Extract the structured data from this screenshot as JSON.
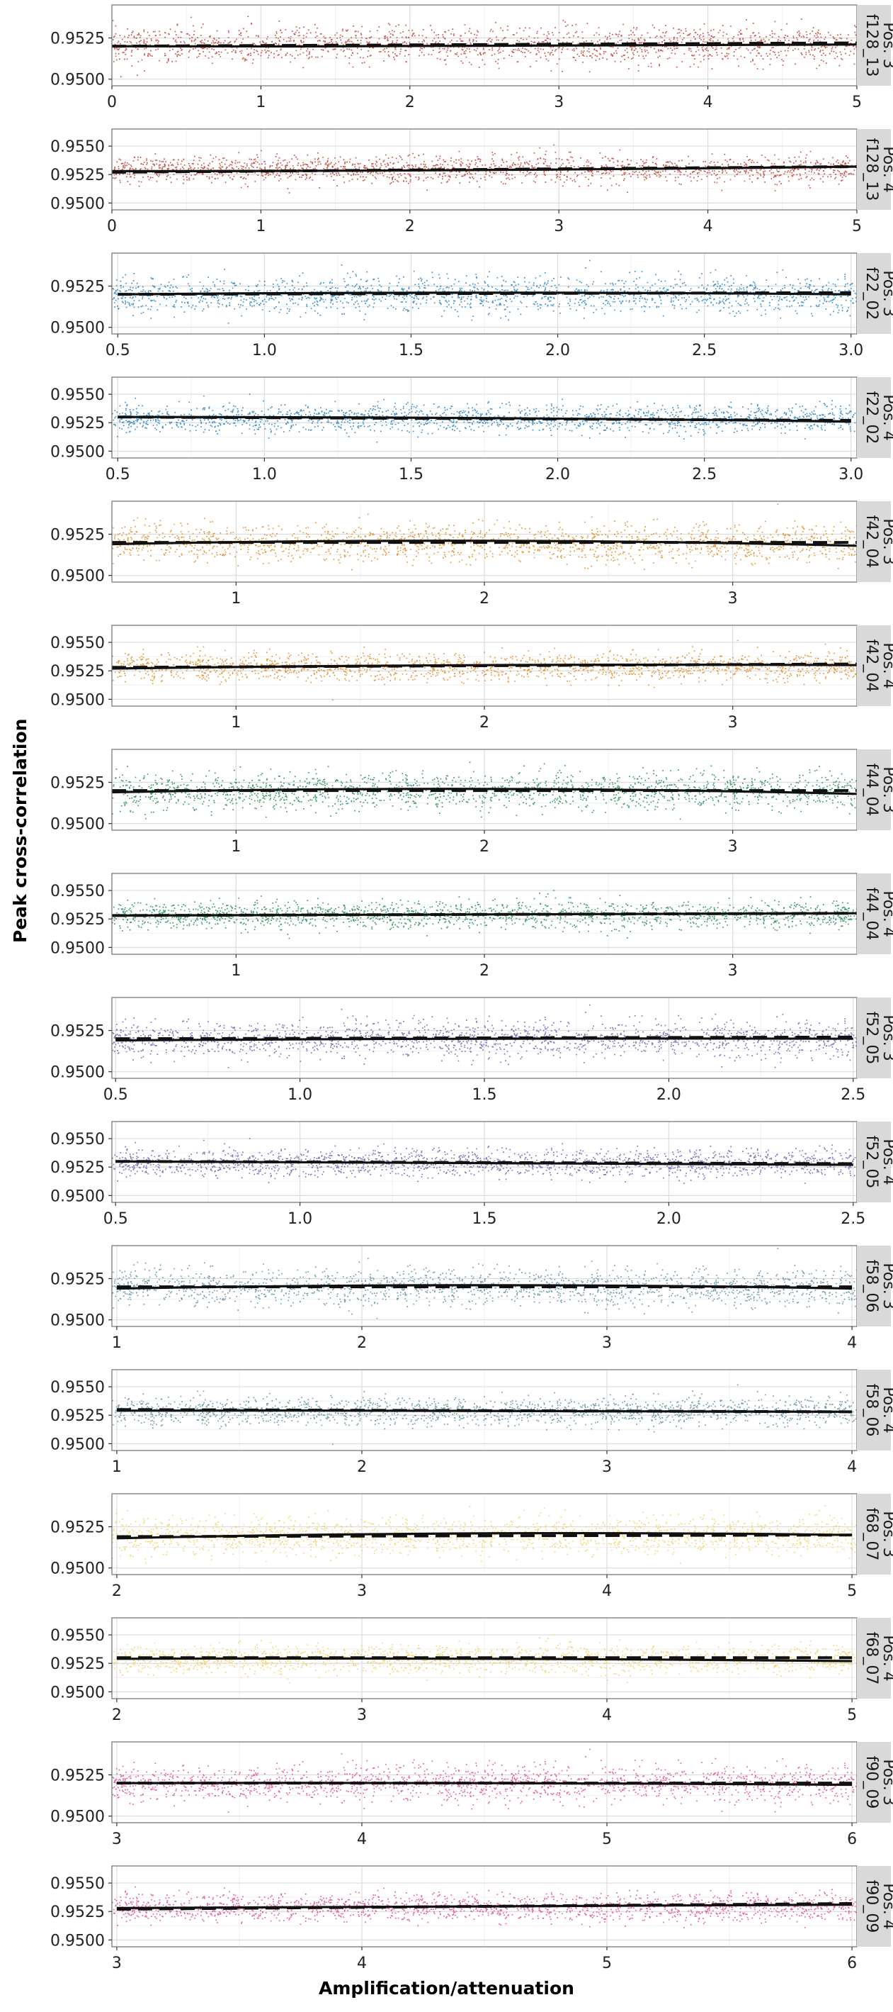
{
  "figure": {
    "ylabel": "Peak cross-correlation",
    "xlabel": "Amplification/attenuation"
  },
  "chart_data": [
    {
      "type": "scatter",
      "facet": "f128_13\nPos. 3",
      "facet_lines": [
        "f128_13",
        "Pos. 3"
      ],
      "color": "#c0392b",
      "xlim": [
        0,
        5
      ],
      "xticks": [
        "0",
        "1",
        "2",
        "3",
        "4",
        "5"
      ],
      "ylim": [
        0.9496,
        0.9545
      ],
      "yticks": [
        "0.9500",
        "0.9525"
      ],
      "point_mean": 0.9521,
      "point_spread": 0.001,
      "solid_fit": {
        "x": [
          0,
          2.5,
          5
        ],
        "y": [
          0.952,
          0.952,
          0.9521
        ]
      },
      "dashed_fit": {
        "x": [
          0,
          5
        ],
        "y": [
          0.952,
          0.9522
        ]
      }
    },
    {
      "type": "scatter",
      "facet": "f128_13\nPos. 4",
      "facet_lines": [
        "f128_13",
        "Pos. 4"
      ],
      "color": "#c0392b",
      "xlim": [
        0,
        5
      ],
      "xticks": [
        "0",
        "1",
        "2",
        "3",
        "4",
        "5"
      ],
      "ylim": [
        0.9494,
        0.9565
      ],
      "yticks": [
        "0.9500",
        "0.9525",
        "0.9550"
      ],
      "point_mean": 0.953,
      "point_spread": 0.0011,
      "solid_fit": {
        "x": [
          0,
          2.5,
          5
        ],
        "y": [
          0.9528,
          0.9529,
          0.9532
        ]
      },
      "dashed_fit": {
        "x": [
          0,
          5
        ],
        "y": [
          0.9527,
          0.9532
        ]
      }
    },
    {
      "type": "scatter",
      "facet": "f22_02\nPos. 3",
      "facet_lines": [
        "f22_02",
        "Pos. 3"
      ],
      "color": "#1f7fc1",
      "xlim": [
        0.48,
        3.02
      ],
      "xticks": [
        "0.5",
        "1.0",
        "1.5",
        "2.0",
        "2.5",
        "3.0"
      ],
      "ylim": [
        0.9496,
        0.9545
      ],
      "yticks": [
        "0.9500",
        "0.9525"
      ],
      "point_mean": 0.952,
      "point_spread": 0.001,
      "solid_fit": {
        "x": [
          0.5,
          1.75,
          3.0
        ],
        "y": [
          0.952,
          0.9521,
          0.952
        ]
      },
      "dashed_fit": {
        "x": [
          0.5,
          3.0
        ],
        "y": [
          0.952,
          0.9521
        ]
      }
    },
    {
      "type": "scatter",
      "facet": "f22_02\nPos. 4",
      "facet_lines": [
        "f22_02",
        "Pos. 4"
      ],
      "color": "#1f7fc1",
      "xlim": [
        0.48,
        3.02
      ],
      "xticks": [
        "0.5",
        "1.0",
        "1.5",
        "2.0",
        "2.5",
        "3.0"
      ],
      "ylim": [
        0.9494,
        0.9565
      ],
      "yticks": [
        "0.9500",
        "0.9525",
        "0.9550"
      ],
      "point_mean": 0.9529,
      "point_spread": 0.0011,
      "solid_fit": {
        "x": [
          0.5,
          1.75,
          3.0
        ],
        "y": [
          0.953,
          0.9529,
          0.9526
        ]
      },
      "dashed_fit": {
        "x": [
          0.5,
          3.0
        ],
        "y": [
          0.953,
          0.9527
        ]
      }
    },
    {
      "type": "scatter",
      "facet": "f42_04\nPos. 3",
      "facet_lines": [
        "f42_04",
        "Pos. 3"
      ],
      "color": "#e08a1e",
      "xlim": [
        0.5,
        3.5
      ],
      "xticks": [
        "1",
        "2",
        "3"
      ],
      "ylim": [
        0.9496,
        0.9545
      ],
      "yticks": [
        "0.9500",
        "0.9525"
      ],
      "point_mean": 0.952,
      "point_spread": 0.001,
      "solid_fit": {
        "x": [
          0.5,
          2.0,
          3.5
        ],
        "y": [
          0.9519,
          0.9521,
          0.9518
        ]
      },
      "dashed_fit": {
        "x": [
          0.5,
          3.5
        ],
        "y": [
          0.952,
          0.952
        ]
      }
    },
    {
      "type": "scatter",
      "facet": "f42_04\nPos. 4",
      "facet_lines": [
        "f42_04",
        "Pos. 4"
      ],
      "color": "#e08a1e",
      "xlim": [
        0.5,
        3.5
      ],
      "xticks": [
        "1",
        "2",
        "3"
      ],
      "ylim": [
        0.9494,
        0.9565
      ],
      "yticks": [
        "0.9500",
        "0.9525",
        "0.9550"
      ],
      "point_mean": 0.9529,
      "point_spread": 0.0011,
      "solid_fit": {
        "x": [
          0.5,
          2.0,
          3.5
        ],
        "y": [
          0.9527,
          0.953,
          0.953
        ]
      },
      "dashed_fit": {
        "x": [
          0.5,
          3.5
        ],
        "y": [
          0.9528,
          0.9531
        ]
      }
    },
    {
      "type": "scatter",
      "facet": "f44_04\nPos. 3",
      "facet_lines": [
        "f44_04",
        "Pos. 3"
      ],
      "color": "#1e8a52",
      "xlim": [
        0.5,
        3.5
      ],
      "xticks": [
        "1",
        "2",
        "3"
      ],
      "ylim": [
        0.9496,
        0.9545
      ],
      "yticks": [
        "0.9500",
        "0.9525"
      ],
      "point_mean": 0.952,
      "point_spread": 0.001,
      "solid_fit": {
        "x": [
          0.5,
          2.0,
          3.5
        ],
        "y": [
          0.9519,
          0.9521,
          0.9518
        ]
      },
      "dashed_fit": {
        "x": [
          0.5,
          3.5
        ],
        "y": [
          0.952,
          0.952
        ]
      }
    },
    {
      "type": "scatter",
      "facet": "f44_04\nPos. 4",
      "facet_lines": [
        "f44_04",
        "Pos. 4"
      ],
      "color": "#1e8a52",
      "xlim": [
        0.5,
        3.5
      ],
      "xticks": [
        "1",
        "2",
        "3"
      ],
      "ylim": [
        0.9494,
        0.9565
      ],
      "yticks": [
        "0.9500",
        "0.9525",
        "0.9550"
      ],
      "point_mean": 0.9529,
      "point_spread": 0.0011,
      "solid_fit": {
        "x": [
          0.5,
          2.0,
          3.5
        ],
        "y": [
          0.9528,
          0.9529,
          0.953
        ]
      },
      "dashed_fit": {
        "x": [
          0.5,
          3.5
        ],
        "y": [
          0.9528,
          0.953
        ]
      }
    },
    {
      "type": "scatter",
      "facet": "f52_05\nPos. 3",
      "facet_lines": [
        "f52_05",
        "Pos. 3"
      ],
      "color": "#6a5fb0",
      "xlim": [
        0.49,
        2.51
      ],
      "xticks": [
        "0.5",
        "1.0",
        "1.5",
        "2.0",
        "2.5"
      ],
      "ylim": [
        0.9496,
        0.9545
      ],
      "yticks": [
        "0.9500",
        "0.9525"
      ],
      "point_mean": 0.952,
      "point_spread": 0.001,
      "solid_fit": {
        "x": [
          0.5,
          1.5,
          2.5
        ],
        "y": [
          0.9519,
          0.952,
          0.952
        ]
      },
      "dashed_fit": {
        "x": [
          0.5,
          2.5
        ],
        "y": [
          0.952,
          0.9521
        ]
      }
    },
    {
      "type": "scatter",
      "facet": "f52_05\nPos. 4",
      "facet_lines": [
        "f52_05",
        "Pos. 4"
      ],
      "color": "#6a5fb0",
      "xlim": [
        0.49,
        2.51
      ],
      "xticks": [
        "0.5",
        "1.0",
        "1.5",
        "2.0",
        "2.5"
      ],
      "ylim": [
        0.9494,
        0.9565
      ],
      "yticks": [
        "0.9500",
        "0.9525",
        "0.9550"
      ],
      "point_mean": 0.9529,
      "point_spread": 0.0011,
      "solid_fit": {
        "x": [
          0.5,
          1.5,
          2.5
        ],
        "y": [
          0.953,
          0.9529,
          0.9527
        ]
      },
      "dashed_fit": {
        "x": [
          0.5,
          2.5
        ],
        "y": [
          0.953,
          0.9528
        ]
      }
    },
    {
      "type": "scatter",
      "facet": "f58_06\nPos. 3",
      "facet_lines": [
        "f58_06",
        "Pos. 3"
      ],
      "color": "#5b8ea0",
      "xlim": [
        0.98,
        4.02
      ],
      "xticks": [
        "1",
        "2",
        "3",
        "4"
      ],
      "ylim": [
        0.9496,
        0.9545
      ],
      "yticks": [
        "0.9500",
        "0.9525"
      ],
      "point_mean": 0.952,
      "point_spread": 0.001,
      "solid_fit": {
        "x": [
          1,
          2.5,
          4
        ],
        "y": [
          0.9519,
          0.9521,
          0.9519
        ]
      },
      "dashed_fit": {
        "x": [
          1,
          4
        ],
        "y": [
          0.952,
          0.952
        ]
      }
    },
    {
      "type": "scatter",
      "facet": "f58_06\nPos. 4",
      "facet_lines": [
        "f58_06",
        "Pos. 4"
      ],
      "color": "#5b8ea0",
      "xlim": [
        0.98,
        4.02
      ],
      "xticks": [
        "1",
        "2",
        "3",
        "4"
      ],
      "ylim": [
        0.9494,
        0.9565
      ],
      "yticks": [
        "0.9500",
        "0.9525",
        "0.9550"
      ],
      "point_mean": 0.9529,
      "point_spread": 0.0011,
      "solid_fit": {
        "x": [
          1,
          2.5,
          4
        ],
        "y": [
          0.9529,
          0.9529,
          0.9528
        ]
      },
      "dashed_fit": {
        "x": [
          1,
          4
        ],
        "y": [
          0.953,
          0.9528
        ]
      }
    },
    {
      "type": "scatter",
      "facet": "f68_07\nPos. 3",
      "facet_lines": [
        "f68_07",
        "Pos. 3"
      ],
      "color": "#f2cf63",
      "xlim": [
        1.98,
        5.02
      ],
      "xticks": [
        "2",
        "3",
        "4",
        "5"
      ],
      "ylim": [
        0.9496,
        0.9545
      ],
      "yticks": [
        "0.9500",
        "0.9525"
      ],
      "point_mean": 0.952,
      "point_spread": 0.001,
      "solid_fit": {
        "x": [
          2,
          3.5,
          5
        ],
        "y": [
          0.9518,
          0.9521,
          0.952
        ]
      },
      "dashed_fit": {
        "x": [
          2,
          5
        ],
        "y": [
          0.9519,
          0.952
        ]
      }
    },
    {
      "type": "scatter",
      "facet": "f68_07\nPos. 4",
      "facet_lines": [
        "f68_07",
        "Pos. 4"
      ],
      "color": "#f2cf63",
      "xlim": [
        1.98,
        5.02
      ],
      "xticks": [
        "2",
        "3",
        "4",
        "5"
      ],
      "ylim": [
        0.9494,
        0.9565
      ],
      "yticks": [
        "0.9500",
        "0.9525",
        "0.9550"
      ],
      "point_mean": 0.9529,
      "point_spread": 0.0011,
      "solid_fit": {
        "x": [
          2,
          3.5,
          5
        ],
        "y": [
          0.9529,
          0.9529,
          0.9527
        ]
      },
      "dashed_fit": {
        "x": [
          2,
          5
        ],
        "y": [
          0.953,
          0.953
        ]
      }
    },
    {
      "type": "scatter",
      "facet": "f90_09\nPos. 3",
      "facet_lines": [
        "f90_09",
        "Pos. 3"
      ],
      "color": "#e0458f",
      "xlim": [
        2.98,
        6.02
      ],
      "xticks": [
        "3",
        "4",
        "5",
        "6"
      ],
      "ylim": [
        0.9496,
        0.9545
      ],
      "yticks": [
        "0.9500",
        "0.9525"
      ],
      "point_mean": 0.952,
      "point_spread": 0.001,
      "solid_fit": {
        "x": [
          3,
          4.5,
          6
        ],
        "y": [
          0.952,
          0.952,
          0.9519
        ]
      },
      "dashed_fit": {
        "x": [
          3,
          6
        ],
        "y": [
          0.952,
          0.952
        ]
      }
    },
    {
      "type": "scatter",
      "facet": "f90_09\nPos. 4",
      "facet_lines": [
        "f90_09",
        "Pos. 4"
      ],
      "color": "#e0458f",
      "xlim": [
        2.98,
        6.02
      ],
      "xticks": [
        "3",
        "4",
        "5",
        "6"
      ],
      "ylim": [
        0.9494,
        0.9565
      ],
      "yticks": [
        "0.9500",
        "0.9525",
        "0.9550"
      ],
      "point_mean": 0.9529,
      "point_spread": 0.0011,
      "solid_fit": {
        "x": [
          3,
          4.5,
          6
        ],
        "y": [
          0.9528,
          0.9529,
          0.9531
        ]
      },
      "dashed_fit": {
        "x": [
          3,
          6
        ],
        "y": [
          0.9527,
          0.9532
        ]
      }
    }
  ]
}
